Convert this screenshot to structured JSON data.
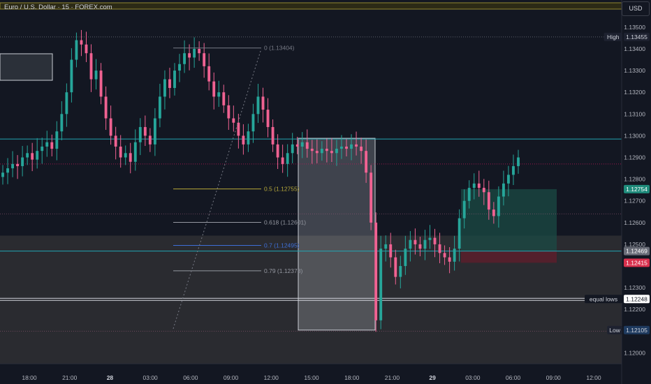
{
  "header": {
    "title": "Euro / U.S. Dollar · 15 · FOREX.com",
    "currency_button": "USD"
  },
  "colors": {
    "background": "#131722",
    "up_candle": "#26a69a",
    "down_candle": "#f06292",
    "cyan_line": "#22a6b3",
    "box_fill": "#e1e4ea",
    "green_zone": "#1b4b44",
    "red_zone": "#5a1e2b",
    "price_tag_green": "#1f8b7b",
    "price_tag_red": "#d8304d",
    "price_tag_blue": "#1e3a5f"
  },
  "annotations": {
    "fib_levels": [
      {
        "ratio": "0",
        "price": 1.13404,
        "label": "0 (1.13404)",
        "color": "#787b86"
      },
      {
        "ratio": "0.5",
        "price": 1.12755,
        "label": "0.5 (1.12755)",
        "color": "#b7a93a"
      },
      {
        "ratio": "0.618",
        "price": 1.12601,
        "label": "0.618 (1.12601)",
        "color": "#9598a1"
      },
      {
        "ratio": "0.7",
        "price": 1.12495,
        "label": "0.7 (1.12495)",
        "color": "#3f6fd8"
      },
      {
        "ratio": "0.79",
        "price": 1.12378,
        "label": "0.79 (1.12378)",
        "color": "#9598a1"
      }
    ],
    "high_label": "High",
    "low_label": "Low",
    "equal_lows_label": "equal lows"
  },
  "chart_data": {
    "type": "candlestick",
    "title": "Euro / U.S. Dollar · 15 · FOREX.com",
    "ylim": [
      1.1195,
      1.1358
    ],
    "y_ticks": [
      "1.13500",
      "1.13400",
      "1.13300",
      "1.13200",
      "1.13100",
      "1.13000",
      "1.12900",
      "1.12800",
      "1.12700",
      "1.12600",
      "1.12500",
      "1.12300",
      "1.12200",
      "1.12000"
    ],
    "x_ticks": [
      {
        "label": "18:00",
        "bold": false
      },
      {
        "label": "21:00",
        "bold": false
      },
      {
        "label": "28",
        "bold": true
      },
      {
        "label": "03:00",
        "bold": false
      },
      {
        "label": "06:00",
        "bold": false
      },
      {
        "label": "09:00",
        "bold": false
      },
      {
        "label": "12:00",
        "bold": false
      },
      {
        "label": "15:00",
        "bold": false
      },
      {
        "label": "18:00",
        "bold": false
      },
      {
        "label": "21:00",
        "bold": false
      },
      {
        "label": "29",
        "bold": true
      },
      {
        "label": "03:00",
        "bold": false
      },
      {
        "label": "06:00",
        "bold": false
      },
      {
        "label": "09:00",
        "bold": false
      },
      {
        "label": "12:00",
        "bold": false
      }
    ],
    "price_labels": [
      {
        "name": "High",
        "value": "1.13455"
      },
      {
        "name": "",
        "value": "1.12754"
      },
      {
        "name": "",
        "value": "1.12469"
      },
      {
        "name": "",
        "value": "1.12415"
      },
      {
        "name": "equal lows",
        "value": "1.12248"
      },
      {
        "name": "Low",
        "value": "1.12105"
      }
    ],
    "key_levels": {
      "high": 1.13455,
      "low": 1.12105,
      "resistance": 1.12985,
      "support": 1.12469,
      "equal_lows": 1.12248,
      "current_line": 1.1287,
      "dotted_levels": [
        1.1264,
        1.121
      ]
    },
    "trade_setup": {
      "entry": 1.12469,
      "target": 1.12754,
      "stop": 1.12415
    },
    "close_series": [
      1.1283,
      1.1285,
      1.1287,
      1.1286,
      1.129,
      1.1292,
      1.1289,
      1.1293,
      1.1295,
      1.1297,
      1.1294,
      1.1302,
      1.131,
      1.132,
      1.1335,
      1.1344,
      1.1342,
      1.1338,
      1.1326,
      1.133,
      1.1318,
      1.1308,
      1.13,
      1.1295,
      1.129,
      1.1292,
      1.1288,
      1.1297,
      1.1304,
      1.13,
      1.1296,
      1.1308,
      1.1318,
      1.1326,
      1.1322,
      1.133,
      1.1333,
      1.1338,
      1.1336,
      1.134,
      1.1338,
      1.1332,
      1.1325,
      1.1318,
      1.132,
      1.1314,
      1.1308,
      1.1306,
      1.13,
      1.1296,
      1.1302,
      1.131,
      1.1318,
      1.1312,
      1.1304,
      1.1296,
      1.129,
      1.1287,
      1.1292,
      1.1296,
      1.1295,
      1.1297,
      1.1294,
      1.1293,
      1.1292,
      1.1294,
      1.1293,
      1.1292,
      1.1294,
      1.1295,
      1.1294,
      1.1296,
      1.1295,
      1.1293,
      1.1283,
      1.126,
      1.1215,
      1.1248,
      1.125,
      1.1244,
      1.1235,
      1.124,
      1.1248,
      1.1252,
      1.125,
      1.1248,
      1.1252,
      1.1253,
      1.125,
      1.1246,
      1.1244,
      1.1242,
      1.1248,
      1.1262,
      1.127,
      1.1276,
      1.1278,
      1.1276,
      1.1274,
      1.1266,
      1.1263,
      1.1272,
      1.1278,
      1.1282,
      1.1286,
      1.129
    ]
  }
}
